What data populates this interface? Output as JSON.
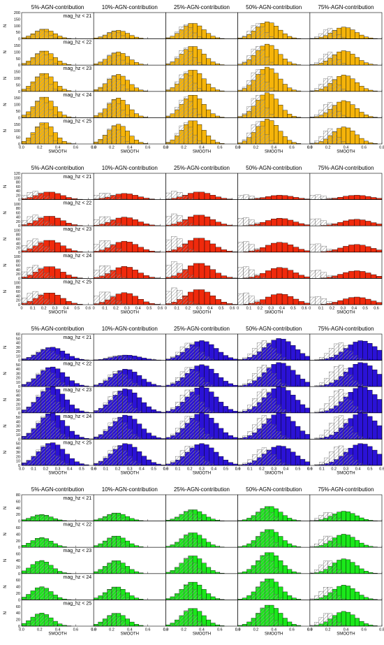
{
  "figure": {
    "background": "#ffffff",
    "line_color": "#000000",
    "hatch_color": "#999999"
  },
  "chart_data": [
    {
      "type": "bar",
      "color": "#f5b40a",
      "columns": [
        "5%-AGN-contribution",
        "10%-AGN-contribution",
        "25%-AGN-contribution",
        "50%-AGN-contribution",
        "75%-AGN-contribution"
      ],
      "rows": [
        "mag_hz < 21",
        "mag_hz < 22",
        "mag_hz < 23",
        "mag_hz < 24",
        "mag_hz < 25"
      ],
      "ylabel": "N",
      "xlabel": "SMOOTH",
      "xlim": [
        0,
        0.8
      ],
      "xticks": [
        "0.0",
        "0.2",
        "0.4",
        "0.6",
        "0.8"
      ],
      "ylim": [
        0,
        200
      ],
      "yticks": [
        0,
        50,
        100,
        150,
        200
      ],
      "bin_width": 0.05,
      "peak_mode": [
        0.25,
        0.27,
        0.3,
        0.33,
        0.38
      ],
      "peak_ref": [
        0.22,
        0.22,
        0.22,
        0.22,
        0.22
      ],
      "peak_height": [
        [
          75,
          65,
          120,
          130,
          90
        ],
        [
          110,
          100,
          145,
          160,
          110
        ],
        [
          140,
          130,
          165,
          185,
          125
        ],
        [
          160,
          150,
          175,
          190,
          130
        ],
        [
          165,
          150,
          180,
          190,
          130
        ]
      ]
    },
    {
      "type": "bar",
      "color": "#f02a0c",
      "columns": [
        "5%-AGN-contribution",
        "10%-AGN-contribution",
        "25%-AGN-contribution",
        "50%-AGN-contribution",
        "75%-AGN-contribution"
      ],
      "rows": [
        "mag_hz < 21",
        "mag_hz < 22",
        "mag_hz < 23",
        "mag_hz < 24",
        "mag_hz < 25"
      ],
      "ylabel": "N",
      "xlabel": "SMOOTH",
      "xlim": [
        0,
        0.65
      ],
      "xticks": [
        "0",
        "0.1",
        "0.2",
        "0.3",
        "0.4",
        "0.5",
        "0.6"
      ],
      "ylim": [
        0,
        120
      ],
      "yticks": [
        0,
        20,
        40,
        60,
        80,
        100,
        120
      ],
      "bin_width": 0.05,
      "peak_mode": [
        0.25,
        0.28,
        0.3,
        0.38,
        0.42
      ],
      "peak_ref": [
        0.12,
        0.1,
        0.08,
        0.06,
        0.06
      ],
      "peak_height": [
        [
          35,
          28,
          35,
          20,
          20
        ],
        [
          45,
          40,
          50,
          35,
          30
        ],
        [
          55,
          50,
          65,
          45,
          35
        ],
        [
          55,
          55,
          70,
          50,
          35
        ],
        [
          55,
          55,
          70,
          50,
          35
        ]
      ]
    },
    {
      "type": "bar",
      "color": "#2b12d6",
      "columns": [
        "5%-AGN-contribution",
        "10%-AGN-contribution",
        "25%-AGN-contribution",
        "50%-AGN-contribution",
        "75%-AGN-contribution"
      ],
      "rows": [
        "mag_hz < 21",
        "mag_hz < 22",
        "mag_hz < 23",
        "mag_hz < 24",
        "mag_hz < 25"
      ],
      "ylabel": "N",
      "xlabel": "SMOOTH",
      "xlim": [
        0,
        0.6
      ],
      "xticks": [
        "0.0",
        "0.1",
        "0.2",
        "0.3",
        "0.4",
        "0.5",
        "0.6"
      ],
      "ylim": [
        0,
        60
      ],
      "yticks": [
        0,
        10,
        20,
        30,
        40,
        50,
        60
      ],
      "bin_width": 0.04,
      "peak_mode": [
        0.25,
        0.27,
        0.3,
        0.35,
        0.43
      ],
      "peak_ref": [
        0.2,
        0.2,
        0.2,
        0.22,
        0.25
      ],
      "peak_height": [
        [
          30,
          12,
          45,
          50,
          45
        ],
        [
          45,
          40,
          50,
          55,
          55
        ],
        [
          60,
          55,
          60,
          60,
          60
        ],
        [
          60,
          55,
          60,
          60,
          60
        ],
        [
          52,
          50,
          50,
          45,
          50
        ]
      ]
    },
    {
      "type": "bar",
      "color": "#1ae81a",
      "columns": [
        "5%-AGN-contribution",
        "10%-AGN-contribution",
        "25%-AGN-contribution",
        "50%-AGN-contribution",
        "75%-AGN-contribution"
      ],
      "rows": [
        "mag_hz < 21",
        "mag_hz < 22",
        "mag_hz < 23",
        "mag_hz < 24",
        "mag_hz < 25"
      ],
      "ylabel": "N",
      "xlabel": "SMOOTH",
      "xlim": [
        0,
        0.8
      ],
      "xticks": [
        "0.0",
        "0.2",
        "0.4",
        "0.6",
        "0.8"
      ],
      "ylim": [
        0,
        80
      ],
      "yticks": [
        0,
        20,
        40,
        60,
        80
      ],
      "bin_width": 0.05,
      "peak_mode": [
        0.22,
        0.25,
        0.3,
        0.35,
        0.38
      ],
      "peak_ref": [
        0.22,
        0.22,
        0.25,
        0.3,
        0.2
      ],
      "peak_height": [
        [
          20,
          25,
          35,
          45,
          30
        ],
        [
          30,
          35,
          45,
          55,
          40
        ],
        [
          40,
          40,
          55,
          65,
          45
        ],
        [
          40,
          40,
          55,
          65,
          45
        ],
        [
          40,
          40,
          55,
          65,
          45
        ]
      ]
    }
  ]
}
